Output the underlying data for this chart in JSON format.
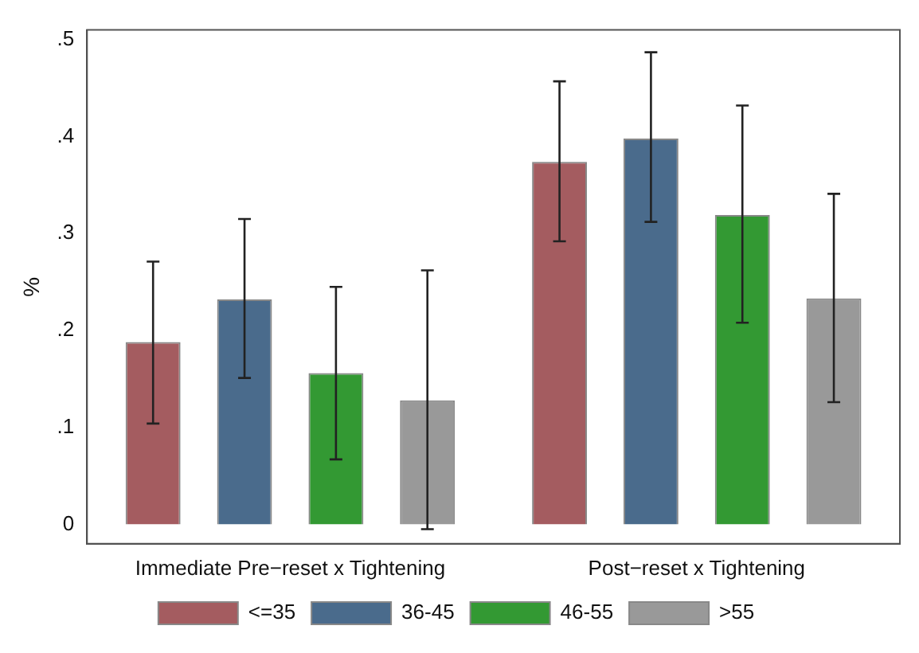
{
  "chart_data": {
    "type": "bar",
    "ylabel": "%",
    "categories": [
      "Immediate Pre−reset x Tightening",
      "Post−reset x Tightening"
    ],
    "series": [
      {
        "name": "<=35",
        "color": "#a45c60",
        "values": [
          0.188,
          0.374
        ],
        "errors": [
          [
            0.104,
            0.271
          ],
          [
            0.292,
            0.457
          ]
        ]
      },
      {
        "name": "36-45",
        "color": "#4a6b8c",
        "values": [
          0.232,
          0.398
        ],
        "errors": [
          [
            0.151,
            0.315
          ],
          [
            0.312,
            0.487
          ]
        ]
      },
      {
        "name": "46-55",
        "color": "#339933",
        "values": [
          0.156,
          0.319
        ],
        "errors": [
          [
            0.067,
            0.245
          ],
          [
            0.208,
            0.432
          ]
        ]
      },
      {
        "name": ">55",
        "color": "#999999",
        "values": [
          0.128,
          0.233
        ],
        "errors": [
          [
            -0.005,
            0.262
          ],
          [
            0.126,
            0.341
          ]
        ]
      }
    ],
    "ylim": [
      -0.02,
      0.51
    ],
    "yticks": [
      0,
      {
        "value": 0.1,
        "label": ".1"
      },
      {
        "value": 0.2,
        "label": ".2"
      },
      {
        "value": 0.3,
        "label": ".3"
      },
      {
        "value": 0.4,
        "label": ".4"
      },
      {
        "value": 0.5,
        "label": ".5"
      }
    ],
    "grid": false,
    "legend": "bottom"
  }
}
